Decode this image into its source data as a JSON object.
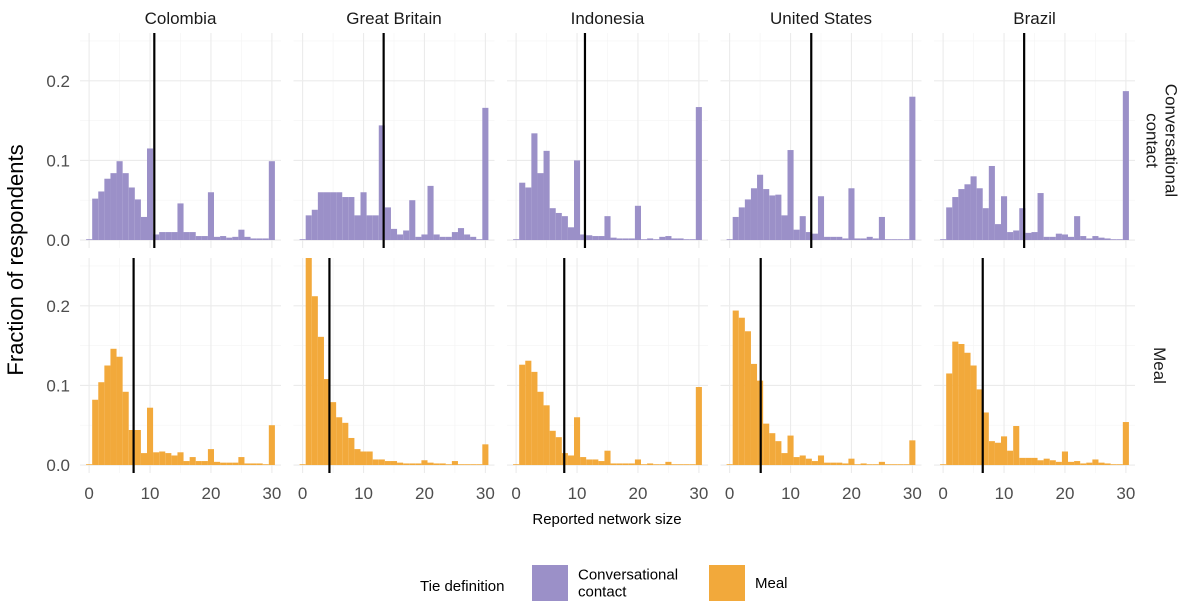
{
  "chart_data": {
    "type": "bar",
    "subtype": "faceted histogram",
    "xlabel": "Reported network size",
    "ylabel": "Fraction of respondents",
    "xlim": [
      -1.5,
      31.5
    ],
    "xticks": [
      0,
      10,
      20,
      30
    ],
    "xtick_labels": [
      "0",
      "10",
      "20",
      "30"
    ],
    "ylim": [
      -0.01,
      0.26
    ],
    "yticks": [
      0.0,
      0.1,
      0.2
    ],
    "ytick_labels": [
      "0.0",
      "0.1",
      "0.2"
    ],
    "grid": true,
    "countries": [
      "Colombia",
      "Great Britain",
      "Indonesia",
      "United States",
      "Brazil"
    ],
    "rows": [
      {
        "key": "conversational",
        "strip_lines": [
          "Conversational",
          "contact"
        ],
        "color": "#9B90C8"
      },
      {
        "key": "meal",
        "strip_lines": [
          "Meal"
        ],
        "color": "#F2A93B"
      }
    ],
    "bins": [
      0,
      1,
      2,
      3,
      4,
      5,
      6,
      7,
      8,
      9,
      10,
      11,
      12,
      13,
      14,
      15,
      16,
      17,
      18,
      19,
      20,
      21,
      22,
      23,
      24,
      25,
      26,
      27,
      28,
      29,
      30
    ],
    "series": {
      "Colombia": {
        "conversational": [
          0.001,
          0.052,
          0.061,
          0.077,
          0.084,
          0.099,
          0.084,
          0.066,
          0.051,
          0.029,
          0.115,
          0.007,
          0.01,
          0.01,
          0.01,
          0.046,
          0.01,
          0.01,
          0.005,
          0.005,
          0.06,
          0.004,
          0.005,
          0.003,
          0.004,
          0.013,
          0.004,
          0.002,
          0.002,
          0.002,
          0.099
        ],
        "meal": [
          0.001,
          0.082,
          0.104,
          0.125,
          0.146,
          0.136,
          0.092,
          0.044,
          0.044,
          0.015,
          0.072,
          0.016,
          0.017,
          0.015,
          0.012,
          0.016,
          0.005,
          0.01,
          0.005,
          0.005,
          0.02,
          0.004,
          0.003,
          0.003,
          0.003,
          0.01,
          0.002,
          0.002,
          0.002,
          0.001,
          0.05
        ]
      },
      "Great Britain": {
        "conversational": [
          0.001,
          0.031,
          0.038,
          0.06,
          0.06,
          0.06,
          0.06,
          0.054,
          0.054,
          0.031,
          0.06,
          0.031,
          0.031,
          0.144,
          0.041,
          0.014,
          0.007,
          0.012,
          0.05,
          0.004,
          0.007,
          0.068,
          0.007,
          0.004,
          0.004,
          0.01,
          0.015,
          0.007,
          0.004,
          0.001,
          0.166
        ],
        "meal": [
          0.001,
          0.26,
          0.212,
          0.161,
          0.108,
          0.079,
          0.06,
          0.053,
          0.034,
          0.02,
          0.017,
          0.017,
          0.007,
          0.007,
          0.005,
          0.005,
          0.003,
          0.002,
          0.002,
          0.002,
          0.006,
          0.003,
          0.002,
          0.002,
          0.001,
          0.005,
          0.001,
          0.001,
          0.001,
          0.001,
          0.026
        ]
      },
      "Indonesia": {
        "conversational": [
          0.001,
          0.072,
          0.066,
          0.134,
          0.084,
          0.112,
          0.04,
          0.034,
          0.03,
          0.016,
          0.1,
          0.007,
          0.006,
          0.005,
          0.005,
          0.03,
          0.003,
          0.002,
          0.002,
          0.002,
          0.043,
          0.001,
          0.002,
          0.001,
          0.004,
          0.005,
          0.002,
          0.002,
          0.001,
          0.001,
          0.167
        ],
        "meal": [
          0.001,
          0.126,
          0.131,
          0.117,
          0.092,
          0.075,
          0.043,
          0.035,
          0.015,
          0.012,
          0.06,
          0.01,
          0.007,
          0.007,
          0.005,
          0.018,
          0.002,
          0.002,
          0.002,
          0.002,
          0.007,
          0.001,
          0.002,
          0.001,
          0.001,
          0.004,
          0.001,
          0.001,
          0.001,
          0.001,
          0.098
        ]
      },
      "United States": {
        "conversational": [
          0.001,
          0.029,
          0.041,
          0.051,
          0.065,
          0.082,
          0.064,
          0.056,
          0.057,
          0.031,
          0.113,
          0.013,
          0.03,
          0.01,
          0.008,
          0.055,
          0.004,
          0.004,
          0.004,
          0.002,
          0.065,
          0.002,
          0.002,
          0.004,
          0.002,
          0.029,
          0.001,
          0.001,
          0.001,
          0.001,
          0.18
        ],
        "meal": [
          0.001,
          0.194,
          0.185,
          0.168,
          0.127,
          0.106,
          0.052,
          0.04,
          0.03,
          0.015,
          0.037,
          0.01,
          0.012,
          0.008,
          0.005,
          0.012,
          0.003,
          0.003,
          0.003,
          0.002,
          0.008,
          0.001,
          0.002,
          0.001,
          0.001,
          0.004,
          0.001,
          0.001,
          0.001,
          0.001,
          0.031
        ]
      },
      "Brazil": {
        "conversational": [
          0.001,
          0.041,
          0.054,
          0.064,
          0.07,
          0.08,
          0.065,
          0.04,
          0.093,
          0.02,
          0.055,
          0.01,
          0.012,
          0.04,
          0.009,
          0.01,
          0.059,
          0.004,
          0.004,
          0.008,
          0.007,
          0.004,
          0.03,
          0.005,
          0.002,
          0.005,
          0.003,
          0.002,
          0.001,
          0.001,
          0.187
        ],
        "meal": [
          0.001,
          0.115,
          0.155,
          0.152,
          0.141,
          0.125,
          0.095,
          0.066,
          0.03,
          0.028,
          0.036,
          0.018,
          0.049,
          0.009,
          0.009,
          0.009,
          0.006,
          0.008,
          0.006,
          0.004,
          0.017,
          0.004,
          0.005,
          0.002,
          0.003,
          0.007,
          0.003,
          0.002,
          0.001,
          0.001,
          0.054
        ]
      }
    },
    "vlines": {
      "Colombia": {
        "conversational": 10.7,
        "meal": 7.3
      },
      "Great Britain": {
        "conversational": 13.3,
        "meal": 4.4
      },
      "Indonesia": {
        "conversational": 11.3,
        "meal": 7.9
      },
      "United States": {
        "conversational": 13.4,
        "meal": 5.1
      },
      "Brazil": {
        "conversational": 13.3,
        "meal": 6.5
      }
    },
    "legend": {
      "title": "Tie definition",
      "position": "bottom",
      "items": [
        {
          "lines": [
            "Conversational",
            "contact"
          ],
          "color": "#9B90C8"
        },
        {
          "lines": [
            "Meal"
          ],
          "color": "#F2A93B"
        }
      ]
    }
  }
}
